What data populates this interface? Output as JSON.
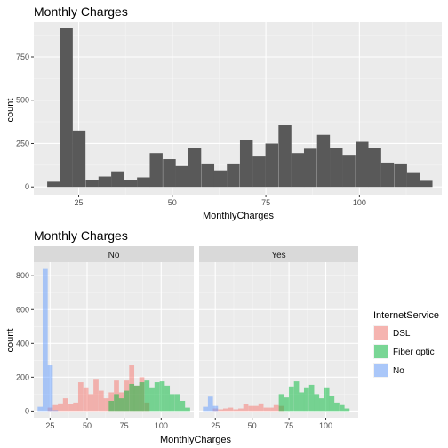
{
  "chart_data": [
    {
      "type": "bar",
      "title": "Monthly Charges",
      "xlabel": "MonthlyCharges",
      "ylabel": "count",
      "xlim": [
        13,
        122
      ],
      "ylim": [
        -45,
        950
      ],
      "xticks": [
        25,
        50,
        75,
        100
      ],
      "yticks": [
        0,
        250,
        500,
        750
      ],
      "grid": true,
      "bin_width": 3.43,
      "bins": [
        {
          "x": 18.3,
          "count": 30
        },
        {
          "x": 21.7,
          "count": 915
        },
        {
          "x": 25.1,
          "count": 325
        },
        {
          "x": 28.6,
          "count": 40
        },
        {
          "x": 32.0,
          "count": 60
        },
        {
          "x": 35.4,
          "count": 90
        },
        {
          "x": 38.9,
          "count": 40
        },
        {
          "x": 42.3,
          "count": 55
        },
        {
          "x": 45.7,
          "count": 195
        },
        {
          "x": 49.2,
          "count": 160
        },
        {
          "x": 52.6,
          "count": 120
        },
        {
          "x": 56.0,
          "count": 225
        },
        {
          "x": 59.5,
          "count": 135
        },
        {
          "x": 62.9,
          "count": 95
        },
        {
          "x": 66.3,
          "count": 135
        },
        {
          "x": 69.8,
          "count": 270
        },
        {
          "x": 73.2,
          "count": 175
        },
        {
          "x": 76.6,
          "count": 250
        },
        {
          "x": 80.1,
          "count": 355
        },
        {
          "x": 83.5,
          "count": 195
        },
        {
          "x": 86.9,
          "count": 220
        },
        {
          "x": 90.4,
          "count": 300
        },
        {
          "x": 93.8,
          "count": 225
        },
        {
          "x": 97.2,
          "count": 185
        },
        {
          "x": 100.7,
          "count": 260
        },
        {
          "x": 104.1,
          "count": 225
        },
        {
          "x": 107.5,
          "count": 140
        },
        {
          "x": 111.0,
          "count": 135
        },
        {
          "x": 114.4,
          "count": 80
        },
        {
          "x": 117.8,
          "count": 35
        }
      ],
      "colors": {
        "bar": "#595959",
        "panel": "#ebebeb",
        "grid": "#ffffff"
      }
    },
    {
      "type": "bar",
      "title": "Monthly Charges",
      "xlabel": "MonthlyCharges",
      "ylabel": "count",
      "xlim": [
        14,
        122
      ],
      "ylim": [
        -40,
        880
      ],
      "xticks": [
        25,
        50,
        75,
        100
      ],
      "yticks": [
        0,
        200,
        400,
        600,
        800
      ],
      "grid": true,
      "bin_width": 3.43,
      "legend_title": "InternetService",
      "legend_position": "right",
      "series": [
        {
          "name": "DSL",
          "color": "#f8766d"
        },
        {
          "name": "Fiber optic",
          "color": "#00ba38"
        },
        {
          "name": "No",
          "color": "#619cff"
        }
      ],
      "facets": [
        {
          "label": "No",
          "bins": [
            {
              "x": 18.3,
              "DSL": 0,
              "Fiber optic": 0,
              "No": 25
            },
            {
              "x": 21.7,
              "DSL": 0,
              "Fiber optic": 0,
              "No": 840
            },
            {
              "x": 25.1,
              "DSL": 20,
              "Fiber optic": 0,
              "No": 270
            },
            {
              "x": 28.6,
              "DSL": 35,
              "Fiber optic": 0,
              "No": 5
            },
            {
              "x": 32.0,
              "DSL": 45,
              "Fiber optic": 0,
              "No": 0
            },
            {
              "x": 35.4,
              "DSL": 75,
              "Fiber optic": 0,
              "No": 0
            },
            {
              "x": 38.9,
              "DSL": 40,
              "Fiber optic": 0,
              "No": 0
            },
            {
              "x": 42.3,
              "DSL": 50,
              "Fiber optic": 0,
              "No": 0
            },
            {
              "x": 45.7,
              "DSL": 170,
              "Fiber optic": 0,
              "No": 0
            },
            {
              "x": 49.2,
              "DSL": 140,
              "Fiber optic": 0,
              "No": 0
            },
            {
              "x": 52.6,
              "DSL": 100,
              "Fiber optic": 0,
              "No": 0
            },
            {
              "x": 56.0,
              "DSL": 190,
              "Fiber optic": 0,
              "No": 0
            },
            {
              "x": 59.5,
              "DSL": 120,
              "Fiber optic": 0,
              "No": 0
            },
            {
              "x": 62.9,
              "DSL": 75,
              "Fiber optic": 0,
              "No": 0
            },
            {
              "x": 66.3,
              "DSL": 110,
              "Fiber optic": 60,
              "No": 0
            },
            {
              "x": 69.8,
              "DSL": 180,
              "Fiber optic": 100,
              "No": 0
            },
            {
              "x": 73.2,
              "DSL": 110,
              "Fiber optic": 75,
              "No": 0
            },
            {
              "x": 76.6,
              "DSL": 180,
              "Fiber optic": 120,
              "No": 0
            },
            {
              "x": 80.1,
              "DSL": 270,
              "Fiber optic": 160,
              "No": 0
            },
            {
              "x": 83.5,
              "DSL": 150,
              "Fiber optic": 150,
              "No": 0
            },
            {
              "x": 86.9,
              "DSL": 200,
              "Fiber optic": 170,
              "No": 0
            },
            {
              "x": 90.4,
              "DSL": 50,
              "Fiber optic": 180,
              "No": 0
            },
            {
              "x": 93.8,
              "DSL": 0,
              "Fiber optic": 140,
              "No": 0
            },
            {
              "x": 97.2,
              "DSL": 0,
              "Fiber optic": 170,
              "No": 0
            },
            {
              "x": 100.7,
              "DSL": 0,
              "Fiber optic": 175,
              "No": 0
            },
            {
              "x": 104.1,
              "DSL": 0,
              "Fiber optic": 150,
              "No": 0
            },
            {
              "x": 107.5,
              "DSL": 0,
              "Fiber optic": 100,
              "No": 0
            },
            {
              "x": 111.0,
              "DSL": 0,
              "Fiber optic": 100,
              "No": 0
            },
            {
              "x": 114.4,
              "DSL": 0,
              "Fiber optic": 60,
              "No": 0
            },
            {
              "x": 117.8,
              "DSL": 0,
              "Fiber optic": 20,
              "No": 0
            }
          ]
        },
        {
          "label": "Yes",
          "bins": [
            {
              "x": 18.3,
              "DSL": 0,
              "Fiber optic": 0,
              "No": 25
            },
            {
              "x": 21.7,
              "DSL": 0,
              "Fiber optic": 0,
              "No": 85
            },
            {
              "x": 25.1,
              "DSL": 15,
              "Fiber optic": 0,
              "No": 30
            },
            {
              "x": 28.6,
              "DSL": 10,
              "Fiber optic": 0,
              "No": 0
            },
            {
              "x": 32.0,
              "DSL": 15,
              "Fiber optic": 0,
              "No": 0
            },
            {
              "x": 35.4,
              "DSL": 20,
              "Fiber optic": 0,
              "No": 0
            },
            {
              "x": 38.9,
              "DSL": 10,
              "Fiber optic": 0,
              "No": 0
            },
            {
              "x": 42.3,
              "DSL": 15,
              "Fiber optic": 0,
              "No": 0
            },
            {
              "x": 45.7,
              "DSL": 40,
              "Fiber optic": 0,
              "No": 0
            },
            {
              "x": 49.2,
              "DSL": 30,
              "Fiber optic": 0,
              "No": 0
            },
            {
              "x": 52.6,
              "DSL": 30,
              "Fiber optic": 0,
              "No": 0
            },
            {
              "x": 56.0,
              "DSL": 45,
              "Fiber optic": 0,
              "No": 0
            },
            {
              "x": 59.5,
              "DSL": 20,
              "Fiber optic": 0,
              "No": 0
            },
            {
              "x": 62.9,
              "DSL": 20,
              "Fiber optic": 0,
              "No": 0
            },
            {
              "x": 66.3,
              "DSL": 35,
              "Fiber optic": 0,
              "No": 0
            },
            {
              "x": 69.8,
              "DSL": 30,
              "Fiber optic": 100,
              "No": 0
            },
            {
              "x": 73.2,
              "DSL": 0,
              "Fiber optic": 80,
              "No": 0
            },
            {
              "x": 76.6,
              "DSL": 0,
              "Fiber optic": 145,
              "No": 0
            },
            {
              "x": 80.1,
              "DSL": 0,
              "Fiber optic": 175,
              "No": 0
            },
            {
              "x": 83.5,
              "DSL": 0,
              "Fiber optic": 110,
              "No": 0
            },
            {
              "x": 86.9,
              "DSL": 0,
              "Fiber optic": 140,
              "No": 0
            },
            {
              "x": 90.4,
              "DSL": 0,
              "Fiber optic": 155,
              "No": 0
            },
            {
              "x": 93.8,
              "DSL": 0,
              "Fiber optic": 100,
              "No": 0
            },
            {
              "x": 97.2,
              "DSL": 0,
              "Fiber optic": 75,
              "No": 0
            },
            {
              "x": 100.7,
              "DSL": 0,
              "Fiber optic": 140,
              "No": 0
            },
            {
              "x": 104.1,
              "DSL": 0,
              "Fiber optic": 90,
              "No": 0
            },
            {
              "x": 107.5,
              "DSL": 0,
              "Fiber optic": 50,
              "No": 0
            },
            {
              "x": 111.0,
              "DSL": 0,
              "Fiber optic": 35,
              "No": 0
            },
            {
              "x": 114.4,
              "DSL": 0,
              "Fiber optic": 15,
              "No": 0
            },
            {
              "x": 117.8,
              "DSL": 0,
              "Fiber optic": 0,
              "No": 0
            }
          ]
        }
      ],
      "colors": {
        "panel": "#ebebeb",
        "grid": "#ffffff",
        "strip": "#d9d9d9"
      }
    }
  ]
}
